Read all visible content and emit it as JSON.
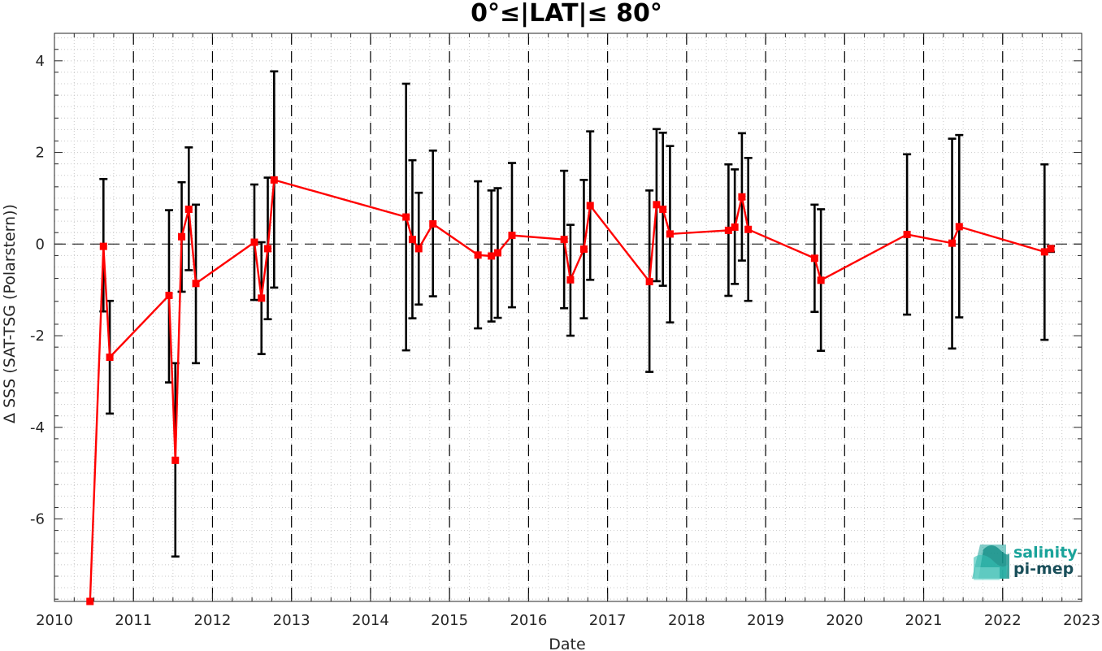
{
  "chart_data": {
    "type": "line",
    "title": "0°≤|LAT|≤ 80°",
    "xlabel": "Date",
    "ylabel": "Δ SSS (SAT-TSG (Polarstern))",
    "xlim": [
      2010,
      2023
    ],
    "ylim": [
      -7.8,
      4.6
    ],
    "x_ticks": [
      2010,
      2011,
      2012,
      2013,
      2014,
      2015,
      2016,
      2017,
      2018,
      2019,
      2020,
      2021,
      2022,
      2023
    ],
    "x_tick_labels": [
      "2010",
      "2011",
      "2012",
      "2013",
      "2014",
      "2015",
      "2016",
      "2017",
      "2018",
      "2019",
      "2020",
      "2021",
      "2022",
      "2023"
    ],
    "y_ticks": [
      -6,
      -4,
      -2,
      0,
      2,
      4
    ],
    "y_tick_labels": [
      "-6",
      "-4",
      "-2",
      "0",
      "2",
      "4"
    ],
    "grid": "dotted minor grid",
    "year_boundaries": "dashed vertical lines",
    "zero_line": "dashed horizontal",
    "series": [
      {
        "color": "#ff0000",
        "marker": "square",
        "points": [
          {
            "x": 2010.45,
            "y": -7.8,
            "err_low": -7.8,
            "err_high": -7.8
          },
          {
            "x": 2010.62,
            "y": -0.05,
            "err_low": -1.47,
            "err_high": 1.42
          },
          {
            "x": 2010.7,
            "y": -2.47,
            "err_low": -3.7,
            "err_high": -1.24
          },
          {
            "x": 2011.45,
            "y": -1.12,
            "err_low": -3.02,
            "err_high": 0.74
          },
          {
            "x": 2011.53,
            "y": -4.72,
            "err_low": -6.82,
            "err_high": -2.6
          },
          {
            "x": 2011.61,
            "y": 0.16,
            "err_low": -1.04,
            "err_high": 1.35
          },
          {
            "x": 2011.7,
            "y": 0.76,
            "err_low": -0.57,
            "err_high": 2.11
          },
          {
            "x": 2011.79,
            "y": -0.86,
            "err_low": -2.6,
            "err_high": 0.86
          },
          {
            "x": 2012.53,
            "y": 0.04,
            "err_low": -1.22,
            "err_high": 1.3
          },
          {
            "x": 2012.62,
            "y": -1.18,
            "err_low": -2.4,
            "err_high": 0.04
          },
          {
            "x": 2012.7,
            "y": -0.1,
            "err_low": -1.64,
            "err_high": 1.45
          },
          {
            "x": 2012.78,
            "y": 1.4,
            "err_low": -0.95,
            "err_high": 3.77
          },
          {
            "x": 2014.45,
            "y": 0.59,
            "err_low": -2.32,
            "err_high": 3.5
          },
          {
            "x": 2014.53,
            "y": 0.1,
            "err_low": -1.62,
            "err_high": 1.83
          },
          {
            "x": 2014.61,
            "y": -0.1,
            "err_low": -1.32,
            "err_high": 1.12
          },
          {
            "x": 2014.79,
            "y": 0.44,
            "err_low": -1.14,
            "err_high": 2.04
          },
          {
            "x": 2015.36,
            "y": -0.24,
            "err_low": -1.84,
            "err_high": 1.37
          },
          {
            "x": 2015.53,
            "y": -0.26,
            "err_low": -1.69,
            "err_high": 1.17
          },
          {
            "x": 2015.61,
            "y": -0.19,
            "err_low": -1.61,
            "err_high": 1.22
          },
          {
            "x": 2015.79,
            "y": 0.19,
            "err_low": -1.38,
            "err_high": 1.77
          },
          {
            "x": 2016.45,
            "y": 0.1,
            "err_low": -1.4,
            "err_high": 1.6
          },
          {
            "x": 2016.53,
            "y": -0.78,
            "err_low": -2.0,
            "err_high": 0.42
          },
          {
            "x": 2016.7,
            "y": -0.11,
            "err_low": -1.62,
            "err_high": 1.4
          },
          {
            "x": 2016.78,
            "y": 0.84,
            "err_low": -0.78,
            "err_high": 2.46
          },
          {
            "x": 2017.53,
            "y": -0.82,
            "err_low": -2.79,
            "err_high": 1.17
          },
          {
            "x": 2017.62,
            "y": 0.86,
            "err_low": -0.81,
            "err_high": 2.51
          },
          {
            "x": 2017.7,
            "y": 0.76,
            "err_low": -0.91,
            "err_high": 2.43
          },
          {
            "x": 2017.79,
            "y": 0.22,
            "err_low": -1.71,
            "err_high": 2.14
          },
          {
            "x": 2018.53,
            "y": 0.3,
            "err_low": -1.13,
            "err_high": 1.74
          },
          {
            "x": 2018.61,
            "y": 0.37,
            "err_low": -0.87,
            "err_high": 1.63
          },
          {
            "x": 2018.7,
            "y": 1.03,
            "err_low": -0.36,
            "err_high": 2.42
          },
          {
            "x": 2018.78,
            "y": 0.32,
            "err_low": -1.24,
            "err_high": 1.88
          },
          {
            "x": 2019.62,
            "y": -0.31,
            "err_low": -1.48,
            "err_high": 0.86
          },
          {
            "x": 2019.7,
            "y": -0.79,
            "err_low": -2.33,
            "err_high": 0.76
          },
          {
            "x": 2020.79,
            "y": 0.21,
            "err_low": -1.54,
            "err_high": 1.96
          },
          {
            "x": 2021.36,
            "y": 0.02,
            "err_low": -2.28,
            "err_high": 2.3
          },
          {
            "x": 2021.45,
            "y": 0.38,
            "err_low": -1.6,
            "err_high": 2.38
          },
          {
            "x": 2022.53,
            "y": -0.17,
            "err_low": -2.09,
            "err_high": 1.74
          },
          {
            "x": 2022.61,
            "y": -0.1,
            "err_low": -0.17,
            "err_high": -0.04
          }
        ]
      }
    ]
  },
  "logo": {
    "line1": "salinity",
    "line2": "pi-mep",
    "color": "#1aa39a"
  }
}
